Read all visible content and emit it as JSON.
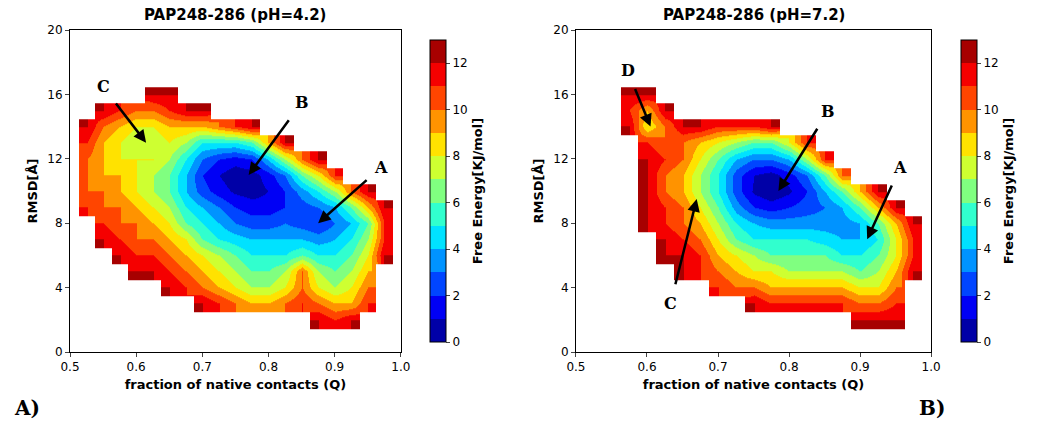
{
  "chart_data": [
    {
      "type": "contour",
      "title": "PAP248-286 (pH=4.2)",
      "x_label": "fraction of native contacts (Q)",
      "y_label": "RMSD[Å]",
      "colorbar_label": "Free Energy[KJ/mol]",
      "panel_label": "A)",
      "xlim": [
        0.5,
        1.0
      ],
      "xticks": [
        0.5,
        0.6,
        0.7,
        0.8,
        0.9,
        {
          "value": 1,
          "label": "1.0"
        }
      ],
      "ylim": [
        0,
        20
      ],
      "yticks": [
        0,
        4,
        8,
        12,
        16,
        20
      ],
      "zlim": [
        0,
        13
      ],
      "zticks": [
        0,
        2,
        4,
        6,
        8,
        10,
        12
      ],
      "x": [
        0.5,
        0.525,
        0.55,
        0.575,
        0.6,
        0.625,
        0.65,
        0.675,
        0.7,
        0.725,
        0.75,
        0.775,
        0.8,
        0.825,
        0.85,
        0.875,
        0.9,
        0.925,
        0.95,
        0.975
      ],
      "y": [
        1,
        2,
        3,
        4,
        5,
        6,
        7,
        8,
        9,
        10,
        11,
        12,
        13,
        14,
        15,
        16,
        17
      ],
      "z": [
        [
          null,
          null,
          null,
          null,
          null,
          null,
          null,
          null,
          null,
          null,
          null,
          null,
          null,
          null,
          null,
          null,
          null,
          null,
          null,
          null
        ],
        [
          null,
          null,
          null,
          null,
          null,
          null,
          null,
          null,
          null,
          null,
          null,
          null,
          null,
          null,
          null,
          12,
          11,
          12,
          null,
          null
        ],
        [
          null,
          null,
          null,
          null,
          null,
          null,
          null,
          null,
          12,
          11,
          10,
          9,
          9,
          10,
          11,
          10,
          9,
          9,
          11,
          null
        ],
        [
          null,
          null,
          null,
          null,
          null,
          null,
          12,
          11,
          10,
          9,
          8,
          7,
          7,
          8,
          10,
          8,
          7,
          8,
          10,
          null
        ],
        [
          null,
          null,
          null,
          null,
          12,
          12,
          11,
          10,
          9,
          8,
          7,
          6,
          6,
          7,
          10,
          7,
          6,
          7,
          9,
          null
        ],
        [
          null,
          null,
          null,
          12,
          11,
          11,
          10,
          9,
          8,
          7,
          6,
          5,
          5,
          5,
          6,
          5,
          5,
          6,
          8,
          12
        ],
        [
          null,
          null,
          12,
          11,
          10,
          10,
          9,
          8,
          6,
          5,
          4.5,
          4,
          4,
          4,
          4,
          3.5,
          4,
          5,
          7,
          11
        ],
        [
          null,
          null,
          11,
          10,
          10,
          9,
          8,
          6,
          5,
          4,
          3,
          2.5,
          2.5,
          3,
          2.5,
          2,
          3,
          4,
          6,
          11
        ],
        [
          null,
          11,
          10,
          10,
          9,
          8,
          7,
          5,
          4,
          3,
          2,
          1.5,
          1.5,
          2,
          2.5,
          3,
          4,
          6,
          9,
          12
        ],
        [
          null,
          10,
          10,
          9,
          8,
          7,
          6,
          4,
          2.5,
          1.5,
          0.8,
          0.5,
          1,
          2,
          3.5,
          5,
          7,
          10,
          12,
          null
        ],
        [
          null,
          10,
          9,
          9,
          8,
          7,
          6,
          4,
          2,
          1,
          0.3,
          0.5,
          1.5,
          3,
          6,
          8,
          11,
          null,
          null,
          null
        ],
        [
          null,
          10,
          9,
          8,
          8,
          8,
          7,
          5,
          3,
          2,
          1.5,
          2,
          4,
          7,
          10,
          12,
          null,
          null,
          null,
          null
        ],
        [
          null,
          11,
          9,
          8,
          7,
          7,
          8,
          7,
          5,
          5,
          5,
          6,
          9,
          12,
          null,
          null,
          null,
          null,
          null,
          null
        ],
        [
          null,
          12,
          10,
          9,
          8,
          8,
          9,
          9,
          9,
          10,
          11,
          12,
          null,
          null,
          null,
          null,
          null,
          null,
          null,
          null
        ],
        [
          null,
          null,
          12,
          11,
          10,
          10,
          11,
          12,
          12,
          null,
          null,
          null,
          null,
          null,
          null,
          null,
          null,
          null,
          null,
          null
        ],
        [
          null,
          null,
          null,
          null,
          null,
          12,
          12,
          null,
          null,
          null,
          null,
          null,
          null,
          null,
          null,
          null,
          null,
          null,
          null,
          null
        ],
        [
          null,
          null,
          null,
          null,
          null,
          null,
          null,
          null,
          null,
          null,
          null,
          null,
          null,
          null,
          null,
          null,
          null,
          null,
          null,
          null
        ]
      ],
      "annotations": [
        {
          "text": "A",
          "x": 0.875,
          "y": 8
        },
        {
          "text": "B",
          "x": 0.77,
          "y": 11
        },
        {
          "text": "C",
          "x": 0.615,
          "y": 13
        }
      ]
    },
    {
      "type": "contour",
      "title": "PAP248-286 (pH=7.2)",
      "x_label": "fraction of native contacts (Q)",
      "y_label": "RMSD[Å]",
      "colorbar_label": "Free Energy[KJ/mol]",
      "panel_label": "B)",
      "xlim": [
        0.5,
        1.0
      ],
      "xticks": [
        0.5,
        0.6,
        0.7,
        0.8,
        0.9,
        {
          "value": 1,
          "label": "1.0"
        }
      ],
      "ylim": [
        0,
        20
      ],
      "yticks": [
        0,
        4,
        8,
        12,
        16,
        20
      ],
      "zlim": [
        0,
        13
      ],
      "zticks": [
        0,
        2,
        4,
        6,
        8,
        10,
        12
      ],
      "x": [
        0.5,
        0.525,
        0.55,
        0.575,
        0.6,
        0.625,
        0.65,
        0.675,
        0.7,
        0.725,
        0.75,
        0.775,
        0.8,
        0.825,
        0.85,
        0.875,
        0.9,
        0.925,
        0.95,
        0.975
      ],
      "y": [
        1,
        2,
        3,
        4,
        5,
        6,
        7,
        8,
        9,
        10,
        11,
        12,
        13,
        14,
        15,
        16,
        17
      ],
      "z": [
        [
          null,
          null,
          null,
          null,
          null,
          null,
          null,
          null,
          null,
          null,
          null,
          null,
          null,
          null,
          null,
          null,
          null,
          null,
          null,
          null
        ],
        [
          null,
          null,
          null,
          null,
          null,
          null,
          null,
          null,
          null,
          null,
          null,
          null,
          null,
          null,
          null,
          null,
          12,
          12,
          12,
          null
        ],
        [
          null,
          null,
          null,
          null,
          null,
          null,
          null,
          null,
          null,
          null,
          12,
          11,
          11,
          11,
          11,
          11,
          10,
          10,
          11,
          null
        ],
        [
          null,
          null,
          null,
          null,
          null,
          null,
          null,
          null,
          11,
          10,
          10,
          9,
          9,
          9,
          9,
          9,
          8,
          8,
          10,
          null
        ],
        [
          null,
          null,
          null,
          null,
          null,
          null,
          12,
          11,
          10,
          9,
          8,
          8,
          7,
          7,
          7,
          7,
          6,
          7,
          9,
          12
        ],
        [
          null,
          null,
          null,
          null,
          null,
          12,
          12,
          11,
          9,
          8,
          7,
          6,
          6,
          6,
          6,
          5,
          5,
          6,
          8,
          11
        ],
        [
          null,
          null,
          null,
          null,
          null,
          12,
          11,
          10,
          8,
          6,
          5,
          5,
          5,
          5,
          4.5,
          4,
          4,
          5,
          8,
          11
        ],
        [
          null,
          null,
          null,
          null,
          12,
          11,
          10,
          9,
          7,
          5,
          4,
          3.5,
          3.5,
          3.5,
          3.5,
          3.5,
          4,
          6,
          9,
          12
        ],
        [
          null,
          null,
          null,
          null,
          12,
          11,
          10,
          8,
          6,
          3.5,
          2,
          1.5,
          2,
          2.5,
          3,
          4,
          6,
          9,
          12,
          null
        ],
        [
          null,
          null,
          null,
          null,
          12,
          10,
          9,
          7,
          5,
          2.5,
          0.8,
          0.2,
          0.8,
          2,
          4,
          6,
          9,
          12,
          null,
          null
        ],
        [
          null,
          null,
          null,
          null,
          12,
          10,
          9,
          7,
          5,
          2.5,
          1,
          0.5,
          1.5,
          3,
          6,
          10,
          null,
          null,
          null,
          null
        ],
        [
          null,
          null,
          null,
          null,
          12,
          11,
          10,
          8,
          6,
          4,
          3,
          3,
          4,
          7,
          11,
          null,
          null,
          null,
          null,
          null
        ],
        [
          null,
          null,
          null,
          null,
          11,
          10,
          10,
          9,
          8,
          7,
          6,
          6,
          8,
          11,
          null,
          null,
          null,
          null,
          null,
          null
        ],
        [
          null,
          null,
          null,
          12,
          8,
          10,
          12,
          12,
          11,
          11,
          11,
          12,
          null,
          null,
          null,
          null,
          null,
          null,
          null,
          null
        ],
        [
          null,
          null,
          null,
          11,
          9,
          12,
          null,
          null,
          null,
          null,
          null,
          null,
          null,
          null,
          null,
          null,
          null,
          null,
          null,
          null
        ],
        [
          null,
          null,
          null,
          12,
          12,
          null,
          null,
          null,
          null,
          null,
          null,
          null,
          null,
          null,
          null,
          null,
          null,
          null,
          null,
          null
        ],
        [
          null,
          null,
          null,
          null,
          null,
          null,
          null,
          null,
          null,
          null,
          null,
          null,
          null,
          null,
          null,
          null,
          null,
          null,
          null,
          null
        ]
      ],
      "annotations": [
        {
          "text": "A",
          "x": 0.91,
          "y": 7
        },
        {
          "text": "B",
          "x": 0.785,
          "y": 10
        },
        {
          "text": "C",
          "x": 0.67,
          "y": 9.5
        },
        {
          "text": "D",
          "x": 0.605,
          "y": 14
        }
      ]
    }
  ]
}
